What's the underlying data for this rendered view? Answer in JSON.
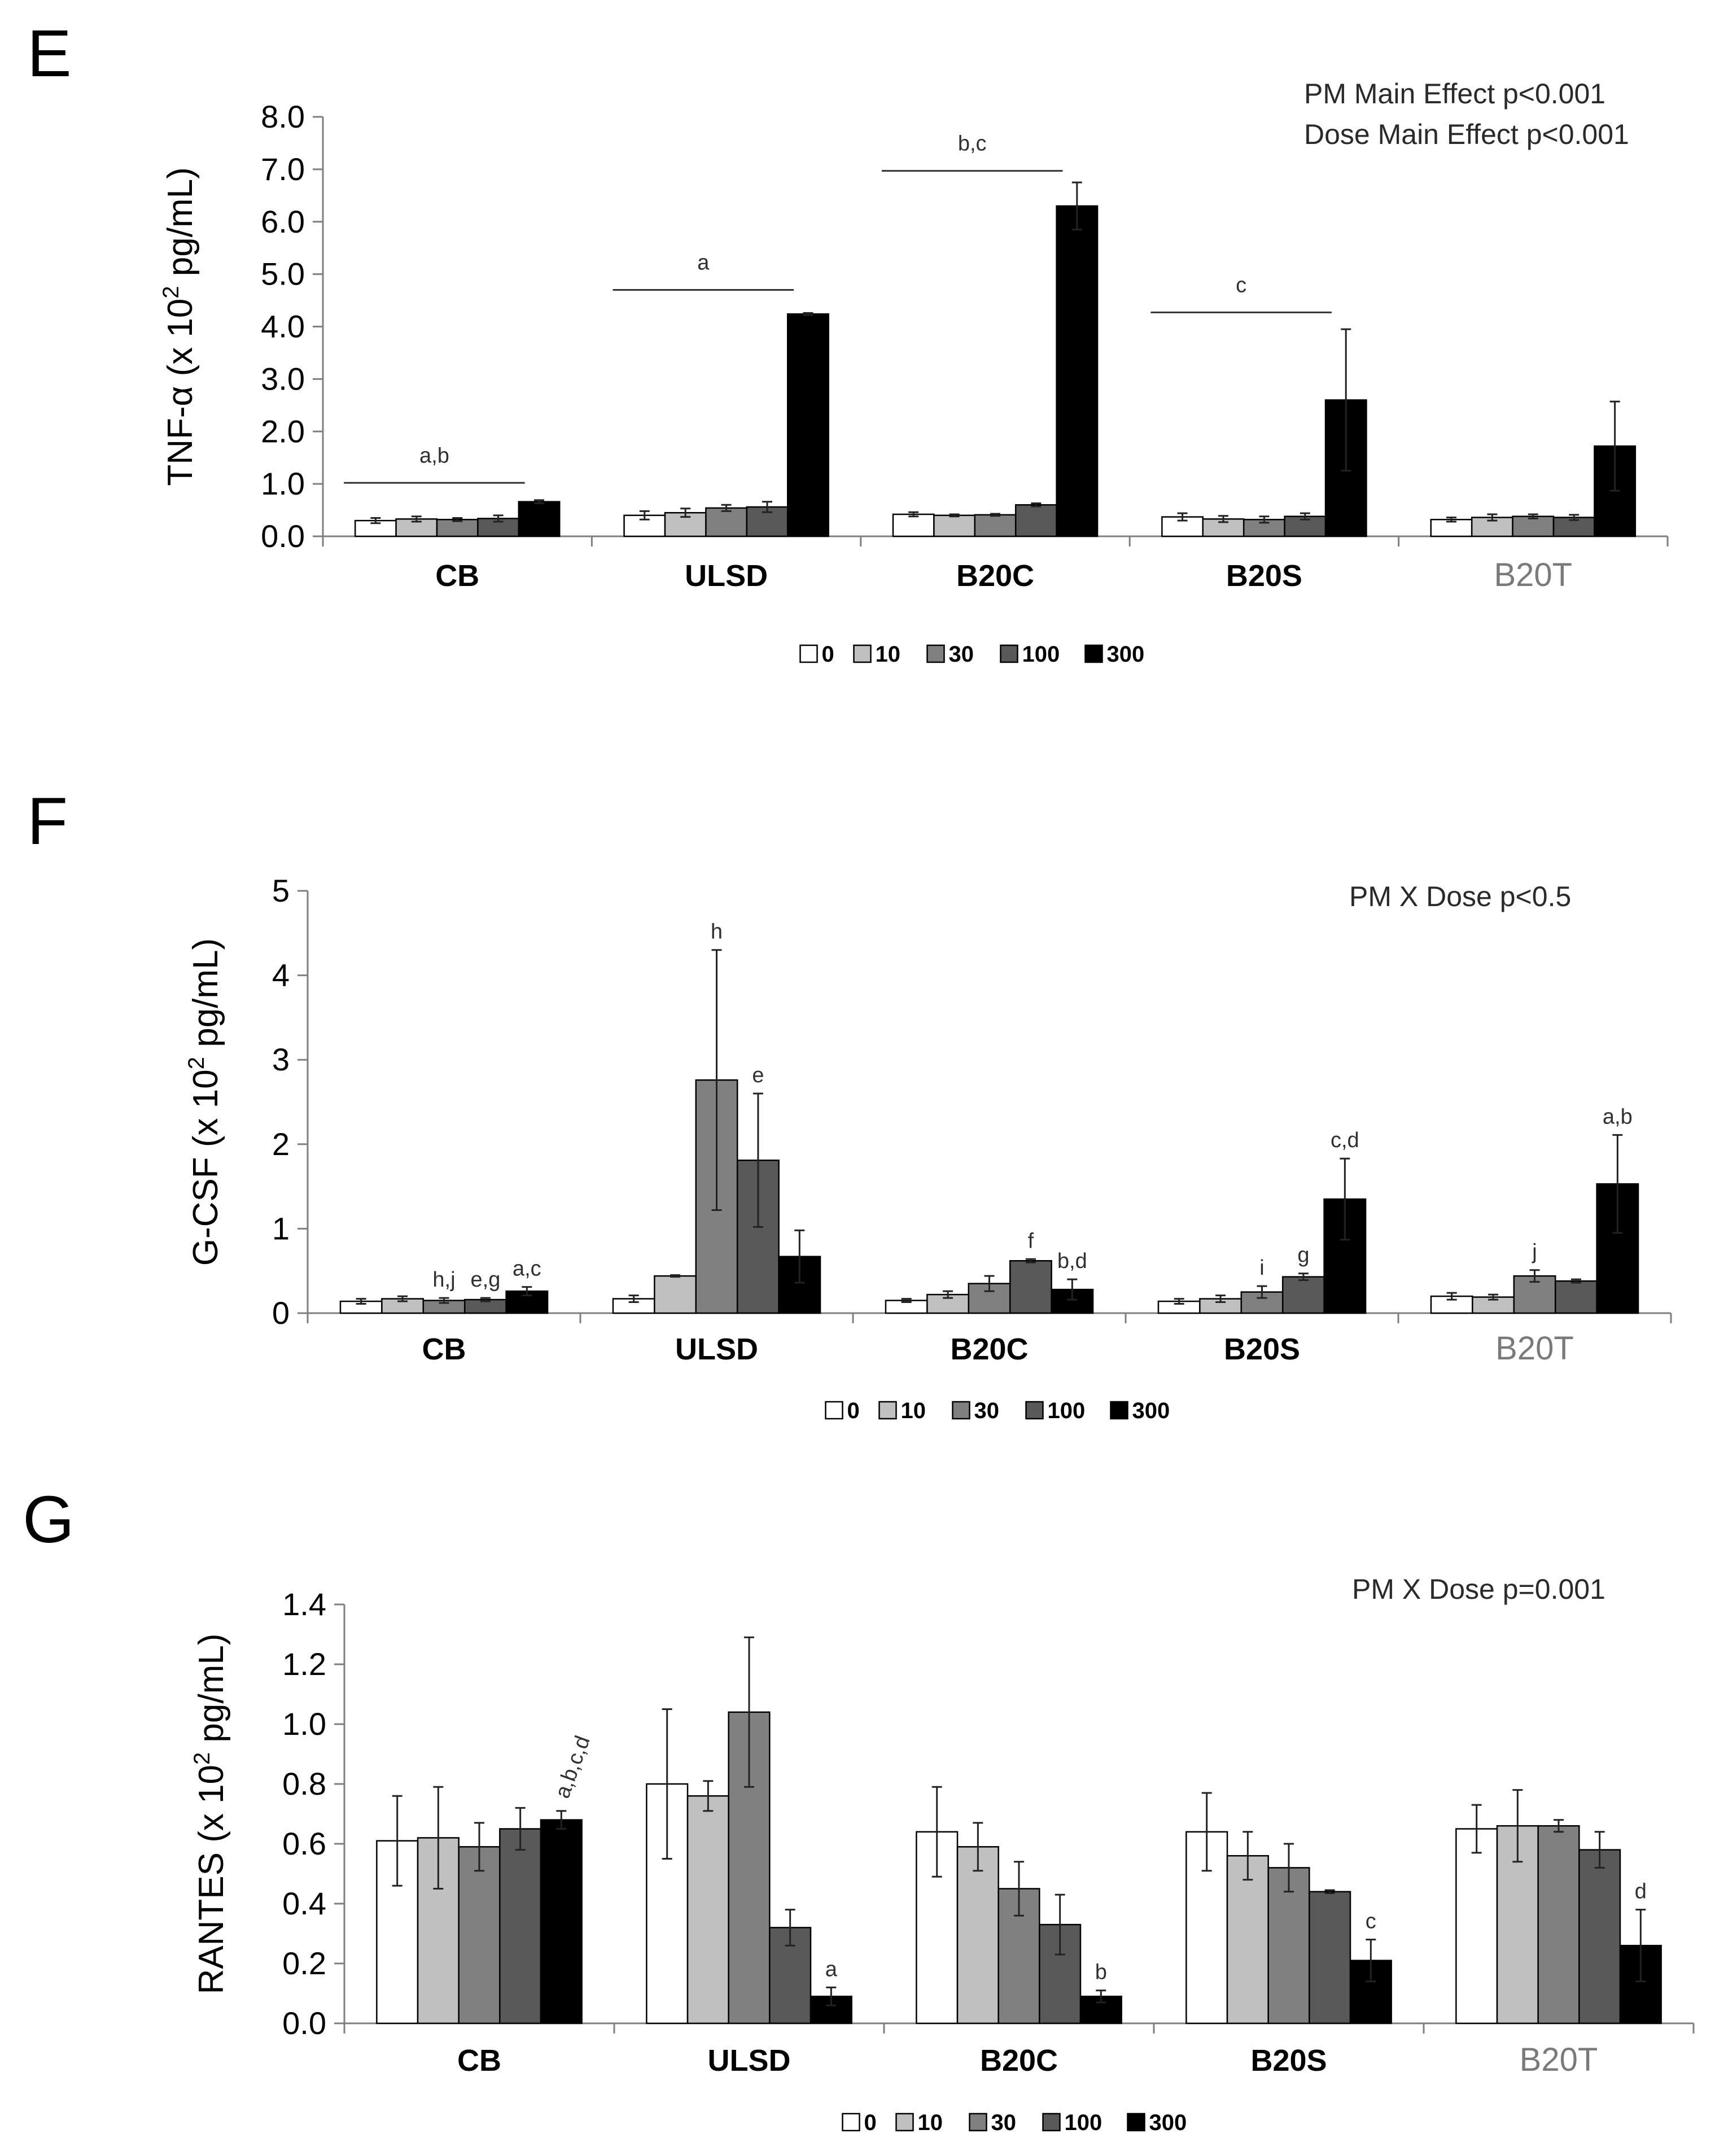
{
  "chart_data": [
    {
      "panel": "E",
      "type": "bar",
      "ylabel_main": "TNF-α (x 10",
      "ylabel_sup": "2",
      "ylabel_tail": " pg/mL)",
      "ylim": [
        0,
        8
      ],
      "yticks": [
        "0.0",
        "1.0",
        "2.0",
        "3.0",
        "4.0",
        "5.0",
        "6.0",
        "7.0",
        "8.0"
      ],
      "categories": [
        "CB",
        "ULSD",
        "B20C",
        "B20S",
        "B20T"
      ],
      "series": [
        {
          "name": "0",
          "color": "#ffffff",
          "values": [
            0.3,
            0.4,
            0.42,
            0.37,
            0.32
          ],
          "errors": [
            0.05,
            0.08,
            0.04,
            0.07,
            0.04
          ]
        },
        {
          "name": "10",
          "color": "#c0c0c0",
          "values": [
            0.33,
            0.45,
            0.4,
            0.33,
            0.36
          ],
          "errors": [
            0.05,
            0.08,
            0.02,
            0.06,
            0.06
          ]
        },
        {
          "name": "30",
          "color": "#808080",
          "values": [
            0.32,
            0.54,
            0.41,
            0.32,
            0.38
          ],
          "errors": [
            0.03,
            0.06,
            0.02,
            0.06,
            0.04
          ]
        },
        {
          "name": "100",
          "color": "#595959",
          "values": [
            0.34,
            0.56,
            0.6,
            0.38,
            0.36
          ],
          "errors": [
            0.06,
            0.1,
            0.03,
            0.06,
            0.05
          ]
        },
        {
          "name": "300",
          "color": "#000000",
          "values": [
            0.66,
            4.24,
            6.3,
            2.6,
            1.72
          ],
          "errors": [
            0.03,
            0.02,
            0.45,
            1.35,
            0.85
          ]
        }
      ],
      "brackets": [
        {
          "label": "a,b",
          "level": 1.02,
          "from": 0,
          "to": 0
        },
        {
          "label": "a",
          "level": 4.7,
          "from": 1,
          "to": 1
        },
        {
          "label": "b,c",
          "level": 6.97,
          "from": 2,
          "to": 2
        },
        {
          "label": "c",
          "level": 4.27,
          "from": 3,
          "to": 3
        }
      ],
      "bar_letters": [],
      "notes": [
        "PM Main Effect p<0.001",
        "Dose Main Effect p<0.001"
      ]
    },
    {
      "panel": "F",
      "type": "bar",
      "ylabel_main": "G-CSF (x 10",
      "ylabel_sup": "2",
      "ylabel_tail": " pg/mL)",
      "ylim": [
        0,
        5
      ],
      "yticks": [
        "0",
        "1",
        "2",
        "3",
        "4",
        "5"
      ],
      "categories": [
        "CB",
        "ULSD",
        "B20C",
        "B20S",
        "B20T"
      ],
      "series": [
        {
          "name": "0",
          "color": "#ffffff",
          "values": [
            0.14,
            0.17,
            0.15,
            0.14,
            0.2
          ],
          "errors": [
            0.03,
            0.04,
            0.02,
            0.03,
            0.04
          ]
        },
        {
          "name": "10",
          "color": "#c0c0c0",
          "values": [
            0.17,
            0.44,
            0.22,
            0.17,
            0.19
          ],
          "errors": [
            0.03,
            0.01,
            0.04,
            0.04,
            0.03
          ]
        },
        {
          "name": "30",
          "color": "#808080",
          "values": [
            0.15,
            2.76,
            0.35,
            0.25,
            0.44
          ],
          "errors": [
            0.03,
            1.54,
            0.09,
            0.07,
            0.07
          ]
        },
        {
          "name": "100",
          "color": "#595959",
          "values": [
            0.16,
            1.81,
            0.62,
            0.43,
            0.38
          ],
          "errors": [
            0.02,
            0.79,
            0.02,
            0.04,
            0.02
          ]
        },
        {
          "name": "300",
          "color": "#000000",
          "values": [
            0.26,
            0.67,
            0.28,
            1.35,
            1.53
          ],
          "errors": [
            0.05,
            0.31,
            0.12,
            0.48,
            0.58
          ]
        }
      ],
      "brackets": [],
      "bar_letters": [
        {
          "label": "h,j",
          "cat": 0,
          "series": 2,
          "rotate": false
        },
        {
          "label": "e,g",
          "cat": 0,
          "series": 3,
          "rotate": false
        },
        {
          "label": "a,c",
          "cat": 0,
          "series": 4,
          "rotate": false
        },
        {
          "label": "h",
          "cat": 1,
          "series": 2,
          "rotate": false
        },
        {
          "label": "e",
          "cat": 1,
          "series": 3,
          "rotate": false
        },
        {
          "label": "f",
          "cat": 2,
          "series": 3,
          "rotate": false
        },
        {
          "label": "b,d",
          "cat": 2,
          "series": 4,
          "rotate": false
        },
        {
          "label": "i",
          "cat": 3,
          "series": 2,
          "rotate": false
        },
        {
          "label": "g",
          "cat": 3,
          "series": 3,
          "rotate": false
        },
        {
          "label": "c,d",
          "cat": 3,
          "series": 4,
          "rotate": false
        },
        {
          "label": "j",
          "cat": 4,
          "series": 2,
          "rotate": false
        },
        {
          "label": "a,b",
          "cat": 4,
          "series": 4,
          "rotate": false
        }
      ],
      "notes": [
        "PM X Dose p<0.5"
      ]
    },
    {
      "panel": "G",
      "type": "bar",
      "ylabel_main": "RANTES (x 10",
      "ylabel_sup": "2",
      "ylabel_tail": " pg/mL)",
      "ylim": [
        0,
        1.4
      ],
      "yticks": [
        "0.0",
        "0.2",
        "0.4",
        "0.6",
        "0.8",
        "1.0",
        "1.2",
        "1.4"
      ],
      "categories": [
        "CB",
        "ULSD",
        "B20C",
        "B20S",
        "B20T"
      ],
      "series": [
        {
          "name": "0",
          "color": "#ffffff",
          "values": [
            0.61,
            0.8,
            0.64,
            0.64,
            0.65
          ],
          "errors": [
            0.15,
            0.25,
            0.15,
            0.13,
            0.08
          ]
        },
        {
          "name": "10",
          "color": "#c0c0c0",
          "values": [
            0.62,
            0.76,
            0.59,
            0.56,
            0.66
          ],
          "errors": [
            0.17,
            0.05,
            0.08,
            0.08,
            0.12
          ]
        },
        {
          "name": "30",
          "color": "#808080",
          "values": [
            0.59,
            1.04,
            0.45,
            0.52,
            0.66
          ],
          "errors": [
            0.08,
            0.25,
            0.09,
            0.08,
            0.02
          ]
        },
        {
          "name": "100",
          "color": "#595959",
          "values": [
            0.65,
            0.32,
            0.33,
            0.44,
            0.58
          ],
          "errors": [
            0.07,
            0.06,
            0.1,
            0.005,
            0.06
          ]
        },
        {
          "name": "300",
          "color": "#000000",
          "values": [
            0.68,
            0.09,
            0.09,
            0.21,
            0.26
          ],
          "errors": [
            0.03,
            0.03,
            0.02,
            0.07,
            0.12
          ]
        }
      ],
      "brackets": [],
      "bar_letters": [
        {
          "label": "a,b,c,d",
          "cat": 0,
          "series": 4,
          "rotate": true
        },
        {
          "label": "a",
          "cat": 1,
          "series": 4,
          "rotate": false
        },
        {
          "label": "b",
          "cat": 2,
          "series": 4,
          "rotate": false
        },
        {
          "label": "c",
          "cat": 3,
          "series": 4,
          "rotate": false
        },
        {
          "label": "d",
          "cat": 4,
          "series": 4,
          "rotate": false
        }
      ],
      "notes": [
        "PM X Dose p=0.001"
      ]
    }
  ]
}
